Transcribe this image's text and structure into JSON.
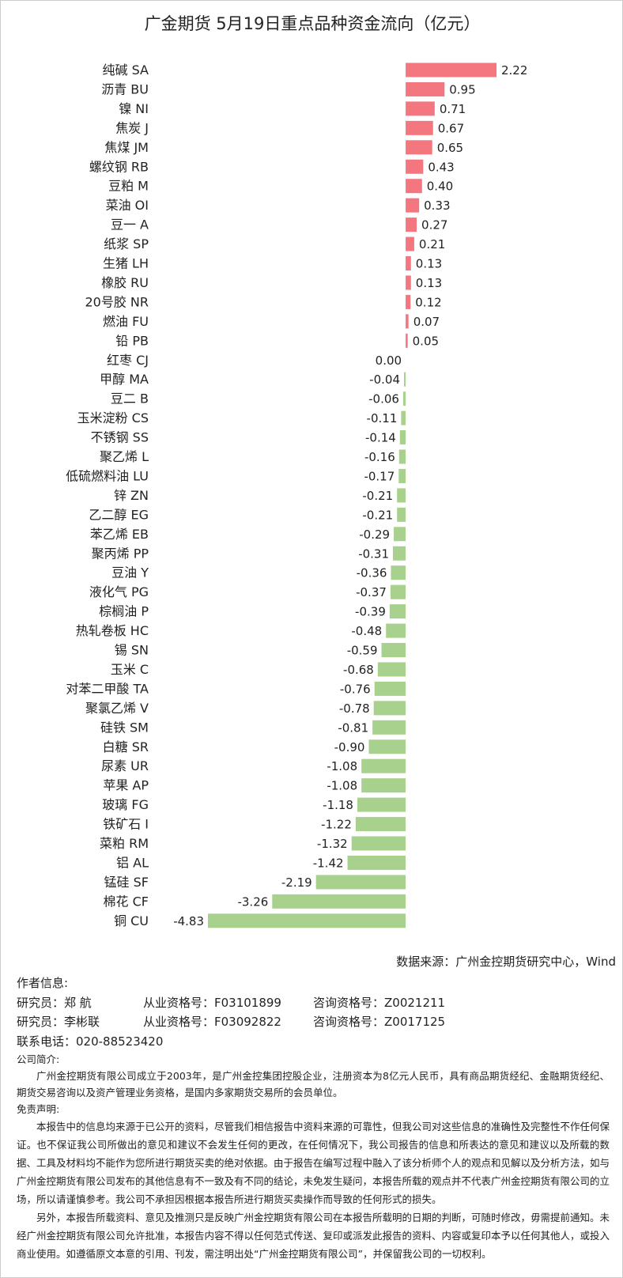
{
  "chart_data": {
    "type": "bar",
    "orientation": "horizontal",
    "title": "广金期货 5月19日重点品种资金流向（亿元）",
    "categories": [
      "纯碱 SA",
      "沥青 BU",
      "镍 NI",
      "焦炭 J",
      "焦煤 JM",
      "螺纹钢 RB",
      "豆粕 M",
      "菜油 OI",
      "豆一 A",
      "纸浆 SP",
      "生猪 LH",
      "橡胶 RU",
      "20号胶 NR",
      "燃油 FU",
      "铅 PB",
      "红枣 CJ",
      "甲醇 MA",
      "豆二 B",
      "玉米淀粉 CS",
      "不锈钢 SS",
      "聚乙烯 L",
      "低硫燃料油 LU",
      "锌 ZN",
      "乙二醇 EG",
      "苯乙烯 EB",
      "聚丙烯 PP",
      "豆油 Y",
      "液化气 PG",
      "棕榈油 P",
      "热轧卷板 HC",
      "锡 SN",
      "玉米 C",
      "对苯二甲酸 TA",
      "聚氯乙烯 V",
      "硅铁 SM",
      "白糖 SR",
      "尿素 UR",
      "苹果 AP",
      "玻璃 FG",
      "铁矿石 I",
      "菜粕 RM",
      "铝 AL",
      "锰硅 SF",
      "棉花 CF",
      "铜 CU"
    ],
    "values": [
      2.22,
      0.95,
      0.71,
      0.67,
      0.65,
      0.43,
      0.4,
      0.33,
      0.27,
      0.21,
      0.13,
      0.13,
      0.12,
      0.07,
      0.05,
      0.0,
      -0.04,
      -0.06,
      -0.11,
      -0.14,
      -0.16,
      -0.17,
      -0.21,
      -0.21,
      -0.29,
      -0.31,
      -0.36,
      -0.37,
      -0.39,
      -0.48,
      -0.59,
      -0.68,
      -0.76,
      -0.78,
      -0.81,
      -0.9,
      -1.08,
      -1.08,
      -1.18,
      -1.22,
      -1.32,
      -1.42,
      -2.19,
      -3.26,
      -4.83
    ],
    "value_labels": [
      "2.22",
      "0.95",
      "0.71",
      "0.67",
      "0.65",
      "0.43",
      "0.40",
      "0.33",
      "0.27",
      "0.21",
      "0.13",
      "0.13",
      "0.12",
      "0.07",
      "0.05",
      "0.00",
      "-0.04",
      "-0.06",
      "-0.11",
      "-0.14",
      "-0.16",
      "-0.17",
      "-0.21",
      "-0.21",
      "-0.29",
      "-0.31",
      "-0.36",
      "-0.37",
      "-0.39",
      "-0.48",
      "-0.59",
      "-0.68",
      "-0.76",
      "-0.78",
      "-0.81",
      "-0.90",
      "-1.08",
      "-1.08",
      "-1.18",
      "-1.22",
      "-1.32",
      "-1.42",
      "-2.19",
      "-3.26",
      "-4.83"
    ],
    "positive_color": "#f4777f",
    "negative_color": "#a9d18e",
    "source": "数据来源：广州金控期货研究中心，Wind"
  },
  "author_info": {
    "heading": "作者信息:",
    "researchers": [
      {
        "role": "研究员：郑 航",
        "qualification": "从业资格号：F03101899",
        "consulting": "咨询资格号：Z0021211"
      },
      {
        "role": "研究员：李彬联",
        "qualification": "从业资格号：F03092822",
        "consulting": "咨询资格号：Z0017125"
      }
    ],
    "phone": "联系电话：020-88523420"
  },
  "company_intro": {
    "heading": "公司简介:",
    "text": "广州金控期货有限公司成立于2003年，是广州金控集团控股企业，注册资本为8亿元人民币，具有商品期货经纪、金融期货经纪、期货交易咨询以及资产管理业务资格，是国内多家期货交易所的会员单位。"
  },
  "disclaimer": {
    "heading": "免责声明:",
    "paragraphs": [
      "本报告中的信息均来源于已公开的资料，尽管我们相信报告中资料来源的可靠性，但我公司对这些信息的准确性及完整性不作任何保证。也不保证我公司所做出的意见和建议不会发生任何的更改，在任何情况下，我公司报告的信息和所表达的意见和建议以及所载的数据、工具及材料均不能作为您所进行期货买卖的绝对依据。由于报告在编写过程中融入了该分析师个人的观点和见解以及分析方法，如与广州金控期货有限公司发布的其他信息有不一致及有不同的结论，未免发生疑问，本报告所载的观点并不代表广州金控期货有限公司的立场，所以请谨慎参考。我公司不承担因根据本报告所进行期货买卖操作而导致的任何形式的损失。",
      "另外，本报告所载资料、意见及推测只是反映广州金控期货有限公司在本报告所载明的日期的判断，可随时修改，毋需提前通知。未经广州金控期货有限公司允许批准，本报告内容不得以任何范式传送、复印或派发此报告的资料、内容或复印本予以任何其他人，或投入商业使用。如遵循原文本意的引用、刊发，需注明出处“广州金控期货有限公司”，并保留我公司的一切权利。"
    ]
  }
}
